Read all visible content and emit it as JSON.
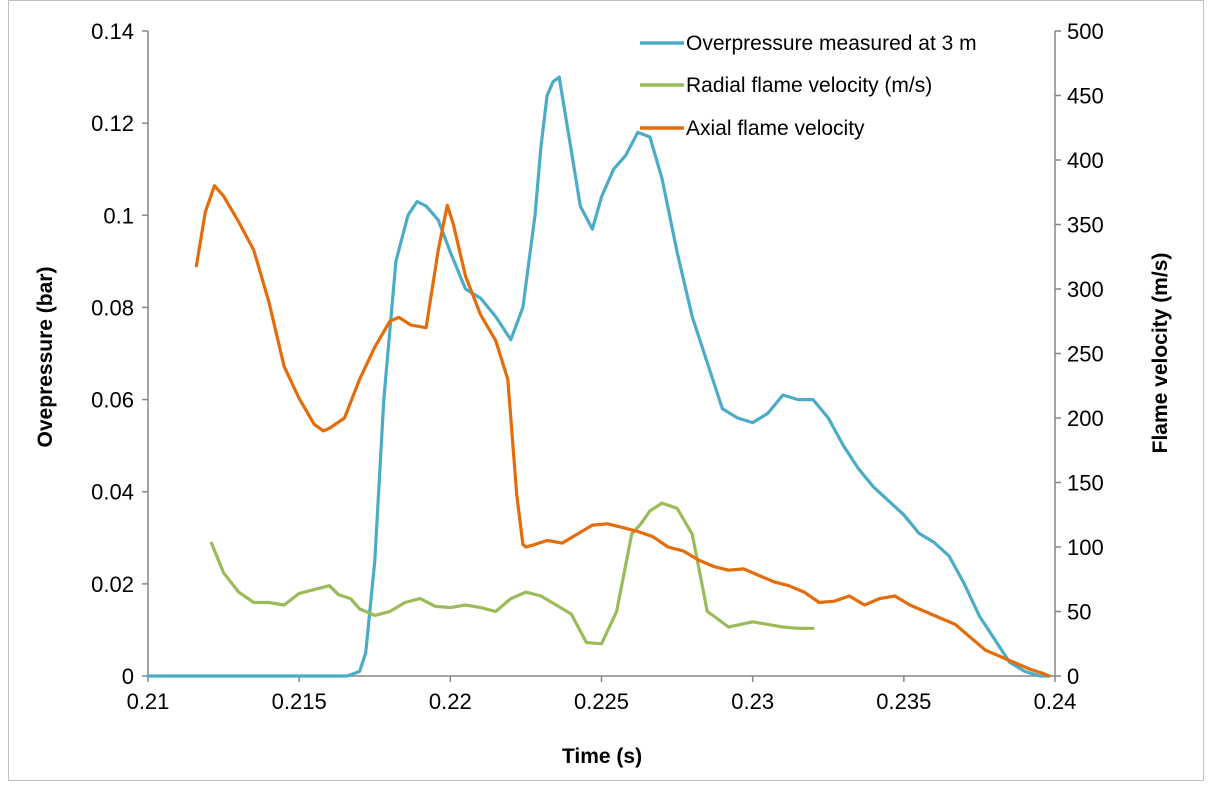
{
  "chart_data": {
    "type": "line",
    "xlabel": "Time (s)",
    "ylabel_left": "Ovepressure (bar)",
    "ylabel_right": "Flame velocity (m/s)",
    "xlim": [
      0.21,
      0.24
    ],
    "ylim_left": [
      0,
      0.14
    ],
    "ylim_right": [
      0,
      500
    ],
    "x_ticks": [
      "0.21",
      "0.215",
      "0.22",
      "0.225",
      "0.23",
      "0.235",
      "0.24"
    ],
    "y_ticks_left": [
      "0",
      "0.02",
      "0.04",
      "0.06",
      "0.08",
      "0.1",
      "0.12",
      "0.14"
    ],
    "y_ticks_right": [
      "0",
      "50",
      "100",
      "150",
      "200",
      "250",
      "300",
      "350",
      "400",
      "450",
      "500"
    ],
    "grid": false,
    "legend_position": "top-right",
    "series": [
      {
        "name": "Overpressure measured at 3 m",
        "axis": "left",
        "color": "#4bacc6",
        "x": [
          0.21,
          0.2105,
          0.2166,
          0.217,
          0.2172,
          0.2175,
          0.2178,
          0.2182,
          0.2186,
          0.2189,
          0.2192,
          0.2196,
          0.22,
          0.2205,
          0.221,
          0.2215,
          0.222,
          0.2224,
          0.2228,
          0.223,
          0.2232,
          0.2234,
          0.2236,
          0.224,
          0.2243,
          0.2247,
          0.225,
          0.2254,
          0.2258,
          0.2262,
          0.2266,
          0.227,
          0.2275,
          0.228,
          0.2285,
          0.229,
          0.2295,
          0.23,
          0.2305,
          0.231,
          0.2315,
          0.232,
          0.2325,
          0.233,
          0.2335,
          0.234,
          0.2345,
          0.235,
          0.2355,
          0.236,
          0.2365,
          0.237,
          0.2375,
          0.238,
          0.2385,
          0.239,
          0.2395,
          0.2398
        ],
        "values": [
          0,
          0,
          0,
          0.001,
          0.005,
          0.025,
          0.06,
          0.09,
          0.1,
          0.103,
          0.102,
          0.099,
          0.092,
          0.084,
          0.082,
          0.078,
          0.073,
          0.08,
          0.1,
          0.115,
          0.126,
          0.129,
          0.13,
          0.114,
          0.102,
          0.097,
          0.104,
          0.11,
          0.113,
          0.118,
          0.117,
          0.108,
          0.092,
          0.078,
          0.068,
          0.058,
          0.056,
          0.055,
          0.057,
          0.061,
          0.06,
          0.06,
          0.056,
          0.05,
          0.045,
          0.041,
          0.038,
          0.035,
          0.031,
          0.029,
          0.026,
          0.02,
          0.013,
          0.008,
          0.003,
          0.001,
          0.0,
          0.0
        ]
      },
      {
        "name": "Radial flame velocity (m/s)",
        "axis": "right",
        "color": "#9bbb59",
        "x": [
          0.2121,
          0.2125,
          0.213,
          0.2135,
          0.214,
          0.2145,
          0.215,
          0.2155,
          0.216,
          0.2163,
          0.2167,
          0.217,
          0.2175,
          0.218,
          0.2185,
          0.219,
          0.2195,
          0.22,
          0.2205,
          0.221,
          0.2215,
          0.222,
          0.2225,
          0.223,
          0.2235,
          0.224,
          0.2245,
          0.225,
          0.2255,
          0.226,
          0.2263,
          0.2266,
          0.227,
          0.2275,
          0.228,
          0.2285,
          0.2288,
          0.2292,
          0.2296,
          0.23,
          0.2305,
          0.231,
          0.2315,
          0.232
        ],
        "values": [
          103,
          80,
          65,
          57,
          57,
          55,
          64,
          67,
          70,
          63,
          60,
          52,
          47,
          50,
          57,
          60,
          54,
          53,
          55,
          53,
          50,
          60,
          65,
          62,
          55,
          48,
          26,
          25,
          50,
          110,
          118,
          128,
          134,
          130,
          110,
          50,
          45,
          38,
          40,
          42,
          40,
          38,
          37,
          37
        ]
      },
      {
        "name": "Axial flame velocity",
        "axis": "right",
        "color": "#e46c0a",
        "x": [
          0.2116,
          0.2119,
          0.2122,
          0.2125,
          0.213,
          0.2135,
          0.214,
          0.2145,
          0.215,
          0.2155,
          0.2158,
          0.216,
          0.2165,
          0.217,
          0.2175,
          0.218,
          0.2183,
          0.2187,
          0.2192,
          0.2196,
          0.2199,
          0.2201,
          0.2205,
          0.221,
          0.2215,
          0.2219,
          0.2222,
          0.2224,
          0.2225,
          0.2228,
          0.2232,
          0.2237,
          0.2242,
          0.2247,
          0.2252,
          0.2257,
          0.2262,
          0.2267,
          0.2272,
          0.2277,
          0.2282,
          0.2287,
          0.2292,
          0.2297,
          0.2302,
          0.2307,
          0.2312,
          0.2317,
          0.2322,
          0.2327,
          0.2332,
          0.2337,
          0.2342,
          0.2347,
          0.2352,
          0.2357,
          0.2362,
          0.2367,
          0.2372,
          0.2377,
          0.2382,
          0.2387,
          0.2392,
          0.2396,
          0.2398
        ],
        "values": [
          318,
          360,
          380,
          372,
          352,
          330,
          290,
          240,
          215,
          195,
          190,
          192,
          200,
          230,
          255,
          275,
          278,
          272,
          270,
          330,
          365,
          350,
          310,
          280,
          260,
          230,
          140,
          102,
          100,
          102,
          105,
          103,
          110,
          117,
          118,
          115,
          112,
          108,
          100,
          97,
          90,
          85,
          82,
          83,
          78,
          73,
          70,
          65,
          57,
          58,
          62,
          55,
          60,
          62,
          55,
          50,
          45,
          40,
          30,
          20,
          15,
          10,
          5,
          2,
          0
        ]
      }
    ]
  }
}
